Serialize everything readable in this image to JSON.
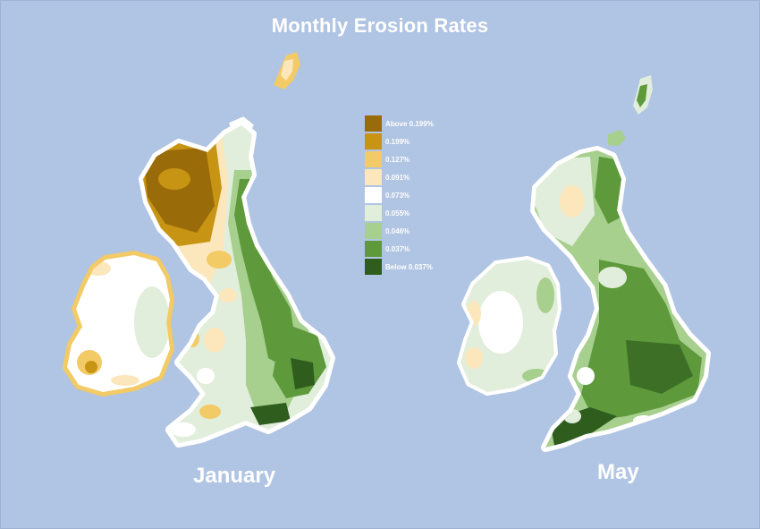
{
  "title": "Monthly Erosion Rates",
  "maps": [
    {
      "label": "January"
    },
    {
      "label": "May"
    }
  ],
  "legend": [
    {
      "label": "Above 0.199%",
      "color": "#9a6b09"
    },
    {
      "label": "0.199%",
      "color": "#c89414"
    },
    {
      "label": "0.127%",
      "color": "#f2ca66"
    },
    {
      "label": "0.091%",
      "color": "#fbe7bb"
    },
    {
      "label": "0.073%",
      "color": "#ffffff"
    },
    {
      "label": "0.055%",
      "color": "#e2eedc"
    },
    {
      "label": "0.046%",
      "color": "#a7cf8e"
    },
    {
      "label": "0.037%",
      "color": "#5e9a3c"
    },
    {
      "label": "Below 0.037%",
      "color": "#2f5d1e"
    }
  ],
  "colors": {
    "background": "#b0c4e3",
    "text": "#ffffff"
  }
}
